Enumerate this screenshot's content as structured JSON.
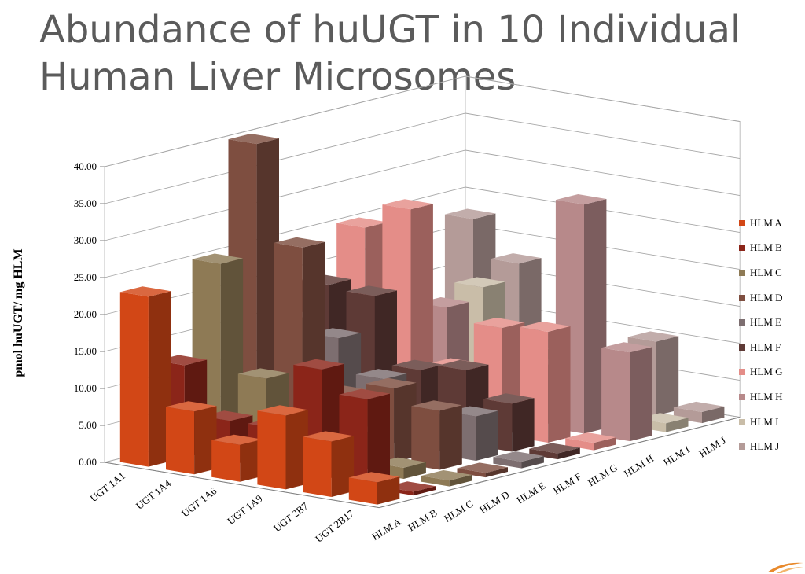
{
  "title_lines": [
    "Abundance of huUGT in 10 Individual",
    "Human Liver Microsomes"
  ],
  "chart_data": {
    "type": "bar",
    "subtype": "3d-column",
    "title": "Abundance of huUGT in 10 Individual Human Liver Microsomes",
    "ylabel": "pmol huUGT/ mg HLM",
    "ylim": [
      0,
      40
    ],
    "yticks": [
      "0.00",
      "5.00",
      "10.00",
      "15.00",
      "20.00",
      "25.00",
      "30.00",
      "35.00",
      "40.00"
    ],
    "grid": true,
    "legend_position": "right",
    "categories": [
      "UGT 1A1",
      "UGT 1A4",
      "UGT 1A6",
      "UGT 1A9",
      "UGT 2B7",
      "UGT 2B17"
    ],
    "series": [
      {
        "name": "HLM A",
        "color": "#d24716",
        "values": [
          23.0,
          8.5,
          5.0,
          10.0,
          7.5,
          3.0
        ]
      },
      {
        "name": "HLM B",
        "color": "#8b2519",
        "values": [
          12.5,
          6.0,
          6.0,
          15.0,
          12.0,
          0.5
        ]
      },
      {
        "name": "HLM C",
        "color": "#8e7a55",
        "values": [
          25.0,
          10.5,
          6.0,
          5.0,
          1.5,
          0.8
        ]
      },
      {
        "name": "HLM D",
        "color": "#7e4e40",
        "values": [
          40.0,
          27.0,
          8.0,
          10.0,
          8.0,
          0.6
        ]
      },
      {
        "name": "HLM E",
        "color": "#7d6e70",
        "values": [
          15.0,
          13.5,
          9.0,
          5.0,
          6.0,
          0.9
        ]
      },
      {
        "name": "HLM F",
        "color": "#5e3a36",
        "values": [
          18.5,
          18.0,
          9.0,
          10.0,
          6.5,
          0.8
        ]
      },
      {
        "name": "HLM G",
        "color": "#e48d88",
        "values": [
          25.0,
          28.5,
          8.0,
          14.5,
          15.0,
          1.0
        ]
      },
      {
        "name": "HLM H",
        "color": "#b7898a",
        "values": [
          18.0,
          14.0,
          5.0,
          8.0,
          31.0,
          12.0
        ]
      },
      {
        "name": "HLM I",
        "color": "#c9bda8",
        "values": [
          11.5,
          15.5,
          7.5,
          6.5,
          7.5,
          1.2
        ]
      },
      {
        "name": "HLM J",
        "color": "#b49b98",
        "values": [
          22.5,
          17.5,
          8.0,
          6.5,
          10.0,
          1.5
        ]
      }
    ]
  }
}
